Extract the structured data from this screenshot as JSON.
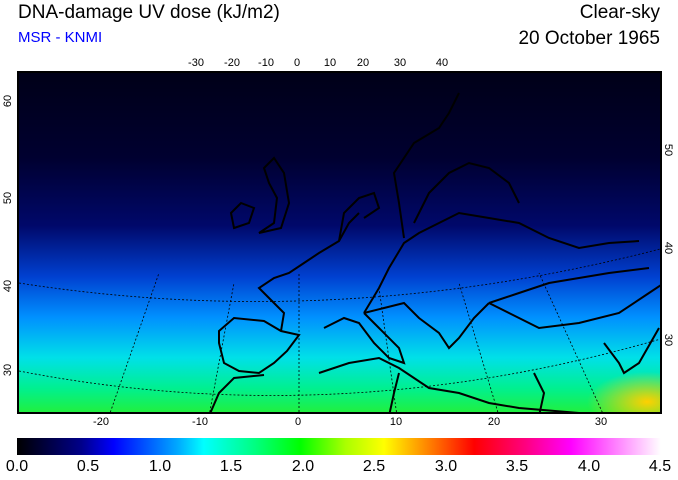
{
  "header": {
    "title": "DNA-damage UV dose (kJ/m2)",
    "source": "MSR - KNMI",
    "condition": "Clear-sky",
    "date": "20 October 1965"
  },
  "map": {
    "top_lon_ticks": [
      "-30",
      "-20",
      "-10",
      "0",
      "10",
      "20",
      "30",
      "40"
    ],
    "bottom_lon_ticks": [
      "-20",
      "-10",
      "0",
      "10",
      "20",
      "30"
    ],
    "left_lat_ticks": [
      "60",
      "50",
      "40",
      "30"
    ],
    "right_lat_ticks": [
      "50",
      "40",
      "30"
    ]
  },
  "colorbar": {
    "labels": [
      "0.0",
      "0.5",
      "1.0",
      "1.5",
      "2.0",
      "2.5",
      "3.0",
      "3.5",
      "4.0",
      "4.5"
    ],
    "min": 0.0,
    "max": 4.5,
    "unit": "kJ/m2"
  }
}
